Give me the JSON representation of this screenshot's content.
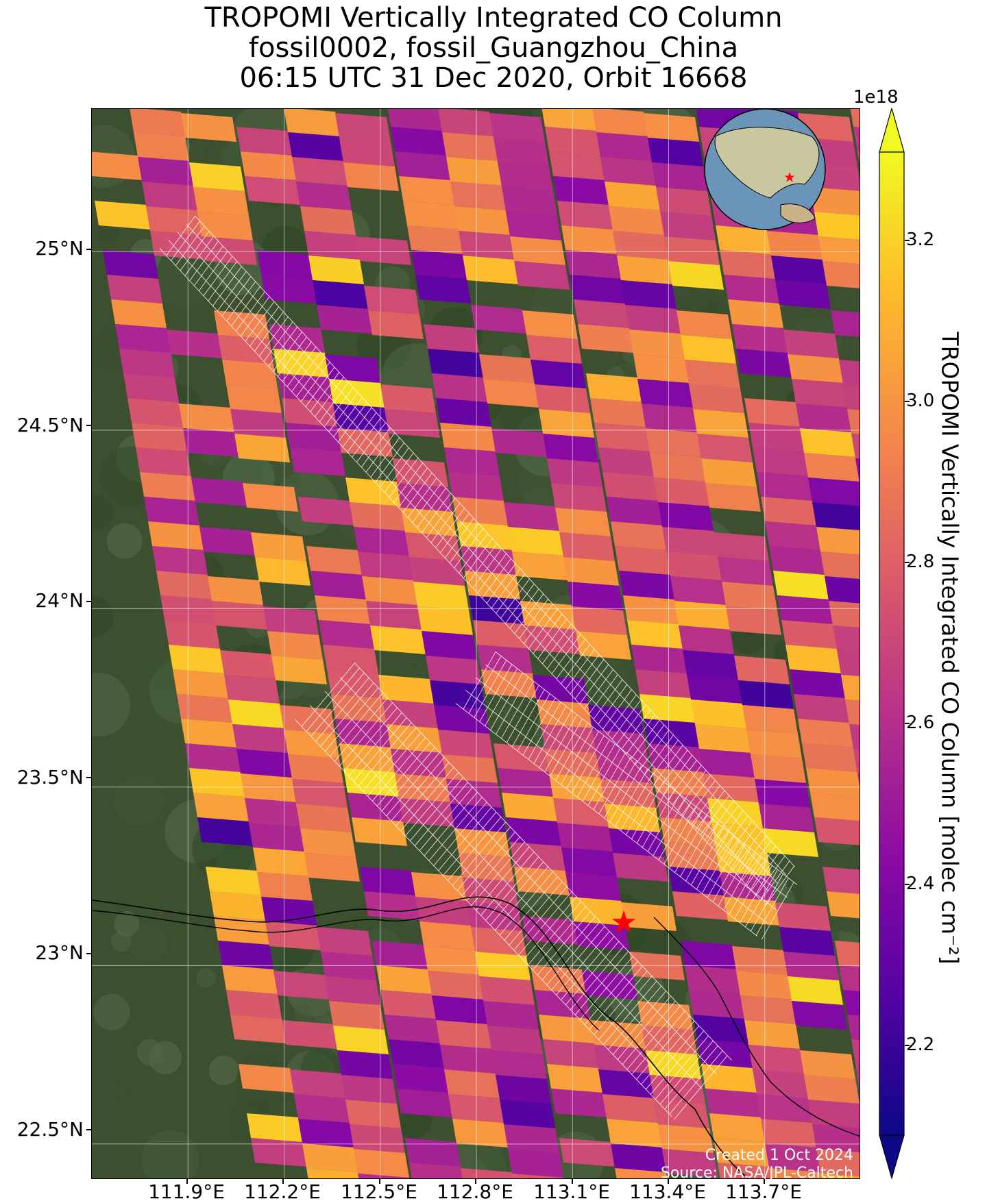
{
  "title": {
    "line1": "TROPOMI Vertically Integrated CO Column",
    "line2": "fossil0002, fossil_Guangzhou_China",
    "line3": "06:15 UTC 31 Dec 2020, Orbit 16668"
  },
  "map": {
    "lat_ticks": [
      "25°N",
      "24.5°N",
      "24°N",
      "23.5°N",
      "23°N",
      "22.5°N"
    ],
    "lon_ticks": [
      "111.9°E",
      "112.2°E",
      "112.5°E",
      "112.8°E",
      "113.1°E",
      "113.4°E",
      "113.7°E"
    ],
    "lat_values": [
      25.0,
      24.5,
      24.0,
      23.5,
      23.0,
      22.5
    ],
    "lon_values": [
      111.9,
      112.2,
      112.5,
      112.8,
      113.1,
      113.4,
      113.7
    ],
    "lon_range": [
      111.6,
      114.0
    ],
    "lat_range": [
      22.4,
      25.4
    ],
    "background": "satellite imagery",
    "target_marker": {
      "lon": 113.26,
      "lat": 23.12,
      "color": "#ff0000",
      "icon": "star-icon"
    },
    "credit_line1": "Created 1 Oct 2024",
    "credit_line2": "Source: NASA/JPL-Caltech"
  },
  "colorbar": {
    "exponent": "1e18",
    "label": "TROPOMI Vertically Integrated CO Column [molec cm⁻²]",
    "ticks": [
      "3.2",
      "3.0",
      "2.8",
      "2.6",
      "2.4",
      "2.2"
    ],
    "tick_values": [
      3.2,
      3.0,
      2.8,
      2.6,
      2.4,
      2.2
    ],
    "range": [
      2.1,
      3.3
    ],
    "colormap": "plasma",
    "extend": "both"
  },
  "inset": {
    "type": "globe",
    "marker_icon": "star-icon",
    "marker_color": "#ff0000"
  },
  "colors": {
    "low": "#0d0887",
    "mid_low": "#7e03a8",
    "mid": "#cc4778",
    "mid_high": "#f89540",
    "high": "#f0f921"
  }
}
